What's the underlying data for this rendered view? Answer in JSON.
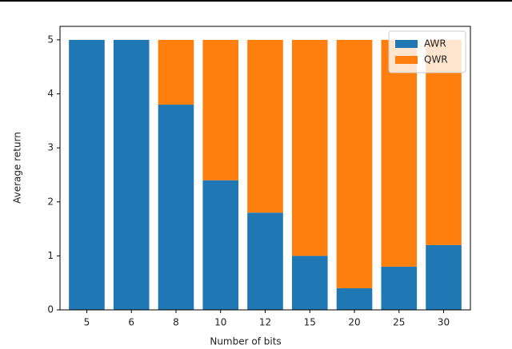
{
  "chart_data": {
    "type": "bar",
    "stacked": true,
    "xlabel": "Number of bits",
    "ylabel": "Average return",
    "categories": [
      "5",
      "6",
      "8",
      "10",
      "12",
      "15",
      "20",
      "25",
      "30"
    ],
    "series": [
      {
        "name": "AWR",
        "color": "#1f77b4",
        "values": [
          5,
          5,
          3.8,
          2.4,
          1.8,
          1.0,
          0.4,
          0.8,
          1.2
        ]
      },
      {
        "name": "QWR",
        "color": "#ff7f0e",
        "values": [
          0,
          0,
          1.2,
          2.6,
          3.2,
          4.0,
          4.6,
          4.2,
          3.8
        ]
      }
    ],
    "ylim": [
      0,
      5.25
    ],
    "yticks": [
      0,
      1,
      2,
      3,
      4,
      5
    ],
    "legend": "upper right"
  }
}
